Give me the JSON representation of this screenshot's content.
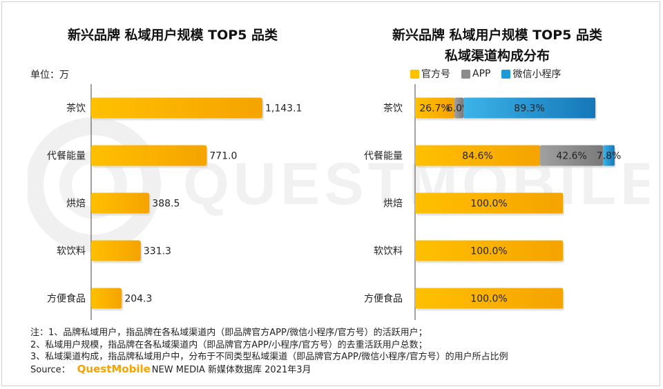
{
  "watermark": "QUESTMOBILE",
  "left_title": "新兴品牌 私域用户规模 TOP5 品类",
  "right_title_line1": "新兴品牌 私域用户规模 TOP5 品类",
  "right_title_line2": "私域渠道构成分布",
  "unit_label": "单位：万",
  "colors": {
    "official": "#FFC000",
    "app": "#8C8C8C",
    "miniprogram": "#1E9AD6",
    "bar": "#FFC000"
  },
  "legend": [
    {
      "name": "官方号",
      "color": "#FFC000"
    },
    {
      "name": "APP",
      "color": "#8C8C8C"
    },
    {
      "name": "微信小程序",
      "color": "#1E9AD6"
    }
  ],
  "chart_data": [
    {
      "type": "bar",
      "orientation": "horizontal",
      "title": "新兴品牌 私域用户规模 TOP5 品类",
      "unit": "单位：万",
      "categories": [
        "茶饮",
        "代餐能量",
        "烘焙",
        "软饮料",
        "方便食品"
      ],
      "values": [
        1143.1,
        771.0,
        388.5,
        331.3,
        204.3
      ],
      "value_labels": [
        "1,143.1",
        "771.0",
        "388.5",
        "331.3",
        "204.3"
      ],
      "xlim": [
        0,
        1300
      ],
      "grid": false
    },
    {
      "type": "bar",
      "orientation": "horizontal",
      "stacked": true,
      "title": "私域渠道构成分布",
      "categories": [
        "茶饮",
        "代餐能量",
        "烘焙",
        "软饮料",
        "方便食品"
      ],
      "series": [
        {
          "name": "官方号",
          "values": [
            26.7,
            84.6,
            100.0,
            100.0,
            100.0
          ],
          "labels": [
            "26.7%",
            "84.6%",
            "100.0%",
            "100.0%",
            "100.0%"
          ]
        },
        {
          "name": "APP",
          "values": [
            6.0,
            42.6,
            0,
            0,
            0
          ],
          "labels": [
            "6.0%",
            "42.6%",
            "",
            "",
            ""
          ]
        },
        {
          "name": "微信小程序",
          "values": [
            89.3,
            7.8,
            0,
            0,
            0
          ],
          "labels": [
            "89.3%",
            "7.8%",
            "",
            "",
            ""
          ]
        }
      ],
      "legend_position": "top",
      "grid": false
    }
  ],
  "notes": [
    "注：1、品牌私域用户，指品牌在各私域渠道内（即品牌官方APP/微信小程序/官方号）的活跃用户；",
    "2、私域用户规模，指品牌在各私域渠道内（即品牌官方APP/小程序/官方号）的去重活跃用户总数；",
    "3、私域渠道构成，指品牌私域用户中，分布于不同类型私域渠道（即品牌官方APP/微信小程序/官方号）的用户所占比例"
  ],
  "source": {
    "label": "Source：",
    "brand": "QuestMobile",
    "text": "NEW MEDIA 新媒体数据库 2021年3月"
  }
}
